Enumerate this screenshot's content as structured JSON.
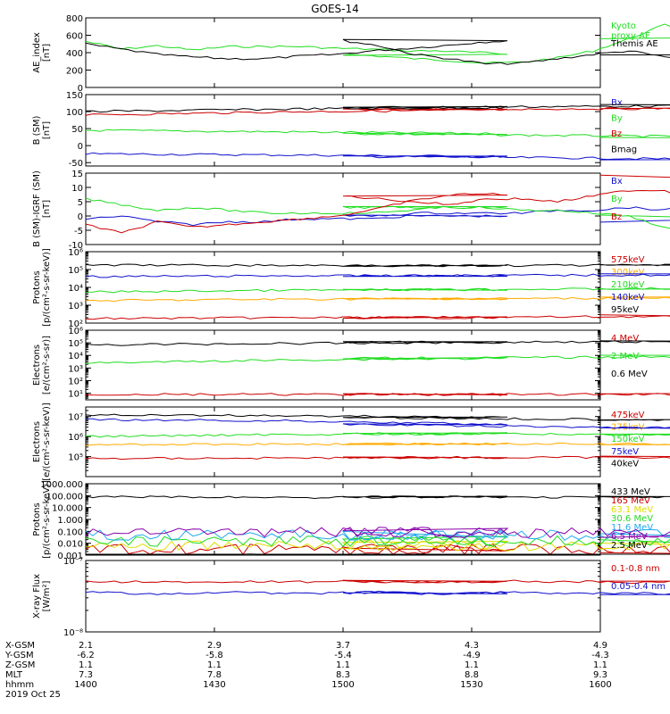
{
  "title": "GOES-14",
  "colors": {
    "black": "#000000",
    "red": "#cc0000",
    "green": "#22dd22",
    "blue": "#1111cc",
    "orange": "#ffaa00",
    "yellow": "#dddd00",
    "cyan": "#22aaee",
    "purple": "#8800aa"
  },
  "chart_data": [
    {
      "type": "line",
      "id": "ae",
      "ylabel": "AE_index\n[nT]",
      "scale": "linear",
      "ylim": [
        0,
        800
      ],
      "ticks": [
        "0",
        "200",
        "400",
        "600",
        "800"
      ],
      "tickValues": [
        0,
        200,
        400,
        600,
        800
      ],
      "series": [
        {
          "name": "Kyoto\nproxy AE",
          "color": "green",
          "x": [
            1400,
            1405,
            1410,
            1415,
            1420,
            1425,
            1430,
            1435,
            1440,
            1445,
            1450,
            1455,
            1500,
            1505,
            1510,
            1515,
            1520,
            1525,
            1530,
            1535,
            1540,
            1545,
            1550,
            1555,
            1600
          ],
          "values": [
            530,
            440,
            480,
            430,
            470,
            470,
            470,
            450,
            440,
            420,
            420,
            400,
            380,
            360,
            330,
            310,
            280,
            290,
            340,
            420,
            560,
            720,
            620,
            610,
            560
          ]
        },
        {
          "name": "Themis AE",
          "color": "black",
          "x": [
            1400,
            1405,
            1410,
            1415,
            1420,
            1425,
            1430,
            1435,
            1440,
            1445,
            1450,
            1455,
            1500,
            1505,
            1510,
            1515,
            1520,
            1525,
            1530,
            1535,
            1540,
            1545,
            1550,
            1555,
            1600
          ],
          "values": [
            500,
            440,
            380,
            350,
            330,
            330,
            360,
            380,
            420,
            450,
            480,
            520,
            540,
            480,
            380,
            330,
            270,
            280,
            330,
            380,
            420,
            350,
            310,
            310,
            380
          ]
        }
      ]
    },
    {
      "type": "line",
      "id": "bsm",
      "ylabel": "B (SM)\n[nT]",
      "scale": "linear",
      "ylim": [
        -60,
        150
      ],
      "ticks": [
        "-50",
        "0",
        "50",
        "100",
        "150"
      ],
      "tickValues": [
        -50,
        0,
        50,
        100,
        150
      ],
      "series": [
        {
          "name": "Bx",
          "color": "blue",
          "x": [
            1400,
            1430,
            1500,
            1530,
            1600
          ],
          "values": [
            -24,
            -28,
            -32,
            -36,
            -42
          ]
        },
        {
          "name": "By",
          "color": "green",
          "x": [
            1400,
            1430,
            1500,
            1530,
            1600
          ],
          "values": [
            45,
            40,
            35,
            30,
            25
          ]
        },
        {
          "name": "Bz",
          "color": "red",
          "x": [
            1400,
            1430,
            1500,
            1530,
            1600
          ],
          "values": [
            90,
            100,
            105,
            108,
            110
          ]
        },
        {
          "name": "Bmag",
          "color": "black",
          "x": [
            1400,
            1430,
            1500,
            1530,
            1600
          ],
          "values": [
            100,
            108,
            112,
            115,
            118
          ]
        }
      ]
    },
    {
      "type": "line",
      "id": "bigrf",
      "ylabel": "B (SM)-IGRF (SM)\n[nT]",
      "scale": "linear",
      "ylim": [
        -10,
        15
      ],
      "ticks": [
        "-10",
        "-5",
        "0",
        "5",
        "10",
        "15"
      ],
      "tickValues": [
        -10,
        -5,
        0,
        5,
        10,
        15
      ],
      "series": [
        {
          "name": "Bx",
          "color": "blue",
          "x": [
            1400,
            1405,
            1410,
            1415,
            1420,
            1425,
            1430,
            1435,
            1440,
            1445,
            1450,
            1455,
            1500,
            1505,
            1510,
            1515,
            1520,
            1525,
            1530,
            1535,
            1540,
            1545,
            1550,
            1555,
            1600
          ],
          "values": [
            -1,
            0,
            -2,
            -3,
            -2,
            -2,
            -1,
            -1,
            -1,
            0,
            0,
            0,
            0,
            0,
            1,
            1,
            1,
            1,
            2,
            2,
            3,
            2,
            4,
            4,
            -2
          ]
        },
        {
          "name": "By",
          "color": "green",
          "x": [
            1400,
            1405,
            1410,
            1415,
            1420,
            1425,
            1430,
            1435,
            1440,
            1445,
            1450,
            1455,
            1500,
            1505,
            1510,
            1515,
            1520,
            1525,
            1530,
            1535,
            1540,
            1545,
            1550,
            1555,
            1600
          ],
          "values": [
            6,
            4,
            2,
            3,
            2,
            1,
            1,
            1,
            1,
            2,
            3,
            3,
            3,
            3,
            3,
            3,
            3,
            2,
            2,
            1,
            0,
            -4,
            -6,
            -5,
            0
          ]
        },
        {
          "name": "Bz",
          "color": "red",
          "x": [
            1400,
            1405,
            1410,
            1415,
            1420,
            1425,
            1430,
            1435,
            1440,
            1445,
            1450,
            1455,
            1500,
            1505,
            1510,
            1515,
            1520,
            1525,
            1530,
            1535,
            1540,
            1545,
            1550,
            1555,
            1600
          ],
          "values": [
            -3,
            -6,
            -2,
            -4,
            -3,
            -2,
            -1,
            0,
            2,
            5,
            7,
            8,
            7,
            6,
            5,
            4,
            6,
            6,
            5,
            7,
            9,
            9,
            5,
            6,
            14
          ]
        }
      ]
    },
    {
      "type": "line",
      "id": "protons",
      "ylabel": "Protons\n[p/(cm²-s-sr-keV)]",
      "scale": "log",
      "ylim": [
        100,
        1000000
      ],
      "ticks": [
        "10²",
        "10³",
        "10⁴",
        "10⁵",
        "10⁶"
      ],
      "tickValues": [
        100,
        1000,
        10000,
        100000,
        1000000
      ],
      "series": [
        {
          "name": "575keV",
          "color": "red",
          "x": [
            1400,
            1430,
            1500,
            1530,
            1600
          ],
          "values": [
            180,
            200,
            200,
            220,
            250
          ]
        },
        {
          "name": "300keV",
          "color": "orange",
          "x": [
            1400,
            1430,
            1500,
            1530,
            1600
          ],
          "values": [
            1800,
            2200,
            2300,
            2400,
            2600
          ]
        },
        {
          "name": "210keV",
          "color": "green",
          "x": [
            1400,
            1430,
            1500,
            1530,
            1600
          ],
          "values": [
            5500,
            7000,
            7500,
            8000,
            9000
          ]
        },
        {
          "name": "140keV",
          "color": "blue",
          "x": [
            1400,
            1430,
            1500,
            1530,
            1600
          ],
          "values": [
            40000,
            45000,
            45000,
            48000,
            50000
          ]
        },
        {
          "name": "95keV",
          "color": "black",
          "x": [
            1400,
            1430,
            1500,
            1530,
            1600
          ],
          "values": [
            180000,
            170000,
            160000,
            170000,
            180000
          ]
        }
      ]
    },
    {
      "type": "line",
      "id": "electrons_mev",
      "ylabel": "Electrons\n[e/(cm²-s-sr)]",
      "scale": "log",
      "ylim": [
        3,
        1000000
      ],
      "ticks": [
        "10¹",
        "10²",
        "10³",
        "10⁴",
        "10⁵",
        "10⁶"
      ],
      "tickValues": [
        10,
        100,
        1000,
        10000,
        100000,
        1000000
      ],
      "series": [
        {
          "name": "4 MeV",
          "color": "red",
          "x": [
            1400,
            1430,
            1500,
            1530,
            1600
          ],
          "values": [
            8,
            8,
            8,
            8,
            8
          ]
        },
        {
          "name": "2 MeV",
          "color": "green",
          "x": [
            1400,
            1430,
            1500,
            1530,
            1600
          ],
          "values": [
            2500,
            4500,
            6000,
            7000,
            9000
          ]
        },
        {
          "name": "0.6 MeV",
          "color": "black",
          "x": [
            1400,
            1430,
            1500,
            1530,
            1600
          ],
          "values": [
            70000,
            90000,
            110000,
            120000,
            130000
          ]
        }
      ]
    },
    {
      "type": "line",
      "id": "electrons_kev",
      "ylabel": "Electrons\n[e/(cm²-s-sr-keV)]",
      "scale": "log",
      "ylim": [
        10000,
        30000000
      ],
      "ticks": [
        "10⁵",
        "10⁶",
        "10⁷"
      ],
      "tickValues": [
        100000,
        1000000,
        10000000
      ],
      "series": [
        {
          "name": "475keV",
          "color": "red",
          "x": [
            1400,
            1430,
            1500,
            1530,
            1600
          ],
          "values": [
            80000,
            85000,
            90000,
            90000,
            95000
          ]
        },
        {
          "name": "275keV",
          "color": "orange",
          "x": [
            1400,
            1430,
            1500,
            1530,
            1600
          ],
          "values": [
            400000,
            420000,
            430000,
            420000,
            420000
          ]
        },
        {
          "name": "150keV",
          "color": "green",
          "x": [
            1400,
            1430,
            1500,
            1530,
            1600
          ],
          "values": [
            1000000,
            1300000,
            1400000,
            1300000,
            1200000
          ]
        },
        {
          "name": "75keV",
          "color": "blue",
          "x": [
            1400,
            1430,
            1500,
            1530,
            1600
          ],
          "values": [
            7000000,
            6000000,
            4000000,
            3000000,
            2500000
          ]
        },
        {
          "name": "40keV",
          "color": "black",
          "x": [
            1400,
            1430,
            1500,
            1530,
            1600
          ],
          "values": [
            12000000,
            11000000,
            9000000,
            7500000,
            6500000
          ]
        }
      ]
    },
    {
      "type": "line",
      "id": "protons_mev",
      "ylabel": "Protons\n[p/(cm²-s-sr-keV)]",
      "scale": "log",
      "ylim": [
        0.001,
        1000
      ],
      "ticks": [
        "0.001",
        "0.010",
        "0.100",
        "1.000",
        "10.000",
        "100.000",
        "1000.000"
      ],
      "tickValues": [
        0.001,
        0.01,
        0.1,
        1,
        10,
        100,
        1000
      ],
      "series": [
        {
          "name": "433 MeV",
          "color": "black",
          "x": [
            1400,
            1430,
            1500,
            1530,
            1600
          ],
          "values": [
            80,
            70,
            80,
            75,
            80
          ]
        },
        {
          "name": "165 MeV",
          "color": "red",
          "x": [
            1400,
            1430,
            1500,
            1530,
            1600
          ],
          "values": [
            0.003,
            0.003,
            0.003,
            0.003,
            0.003
          ]
        },
        {
          "name": "63.1 MeV",
          "color": "yellow",
          "x": [
            1400,
            1430,
            1500,
            1530,
            1600
          ],
          "values": [
            0.006,
            0.006,
            0.006,
            0.006,
            0.006
          ]
        },
        {
          "name": "30.6 MeV",
          "color": "green",
          "x": [
            1400,
            1430,
            1500,
            1530,
            1600
          ],
          "values": [
            0.015,
            0.015,
            0.015,
            0.015,
            0.015
          ]
        },
        {
          "name": "11.6 MeV",
          "color": "cyan",
          "x": [
            1400,
            1430,
            1500,
            1530,
            1600
          ],
          "values": [
            0.05,
            0.05,
            0.05,
            0.05,
            0.05
          ]
        },
        {
          "name": "6.5 MeV",
          "color": "purple",
          "x": [
            1400,
            1430,
            1500,
            1530,
            1600
          ],
          "values": [
            0.08,
            0.08,
            0.08,
            0.08,
            0.08
          ]
        },
        {
          "name": "2.5 MeV",
          "color": "black",
          "x": [
            1400,
            1430,
            1500,
            1530,
            1600
          ],
          "values": [
            0.001,
            0.001,
            0.001,
            0.001,
            0.001
          ]
        }
      ]
    },
    {
      "type": "line",
      "id": "xray",
      "ylabel": "X-ray Flux\n[W/m²]",
      "scale": "log",
      "ylim": [
        1e-08,
        1e-07
      ],
      "ticks": [
        "10⁻⁸",
        "10⁻⁷"
      ],
      "tickValues": [
        1e-08,
        1e-07
      ],
      "series": [
        {
          "name": "0.1-0.8 nm",
          "color": "red",
          "x": [
            1400,
            1405,
            1410,
            1415,
            1420,
            1425,
            1430,
            1435,
            1440,
            1445,
            1450,
            1455,
            1500,
            1505,
            1510,
            1515,
            1520,
            1525,
            1530,
            1535,
            1540,
            1545,
            1550,
            1555,
            1600
          ],
          "values": [
            5.2e-08,
            5e-08,
            5.1e-08,
            4.9e-08,
            5e-08,
            5.1e-08,
            5e-08,
            5.2e-08,
            5e-08,
            5.1e-08,
            4.9e-08,
            5e-08,
            5.1e-08,
            5e-08,
            4.9e-08,
            5.1e-08,
            5e-08,
            5.2e-08,
            5e-08,
            5.1e-08,
            4.9e-08,
            5e-08,
            5.2e-08,
            5e-08,
            5.1e-08
          ]
        },
        {
          "name": "0.05-0.4 nm",
          "color": "blue",
          "x": [
            1400,
            1405,
            1410,
            1415,
            1420,
            1425,
            1430,
            1435,
            1440,
            1445,
            1450,
            1455,
            1500,
            1505,
            1510,
            1515,
            1520,
            1525,
            1530,
            1535,
            1540,
            1545,
            1550,
            1555,
            1600
          ],
          "values": [
            3.6e-08,
            3.5e-08,
            3.4e-08,
            3.5e-08,
            3.6e-08,
            3.5e-08,
            3.4e-08,
            3.5e-08,
            3.6e-08,
            3.5e-08,
            3.4e-08,
            3.5e-08,
            3.5e-08,
            3.6e-08,
            3.4e-08,
            3.5e-08,
            3.5e-08,
            3.6e-08,
            3.4e-08,
            3.5e-08,
            3.5e-08,
            3.4e-08,
            3.6e-08,
            3.5e-08,
            3.4e-08
          ]
        }
      ]
    }
  ],
  "xaxis": {
    "xlim": [
      1400,
      1600
    ],
    "rows": [
      {
        "label": "X-GSM",
        "values": [
          "2.1",
          "2.9",
          "3.7",
          "4.3",
          "4.9"
        ]
      },
      {
        "label": "Y-GSM",
        "values": [
          "-6.2",
          "-5.8",
          "-5.4",
          "-4.9",
          "-4.3"
        ]
      },
      {
        "label": "Z-GSM",
        "values": [
          "1.1",
          "1.1",
          "1.1",
          "1.1",
          "1.1"
        ]
      },
      {
        "label": "MLT",
        "values": [
          "7.3",
          "7.8",
          "8.3",
          "8.8",
          "9.3"
        ]
      },
      {
        "label": "hhmm",
        "values": [
          "1400",
          "1430",
          "1500",
          "1530",
          "1600"
        ]
      }
    ],
    "tick_x": [
      1400,
      1430,
      1500,
      1530,
      1600
    ],
    "date": "2019 Oct 25"
  }
}
